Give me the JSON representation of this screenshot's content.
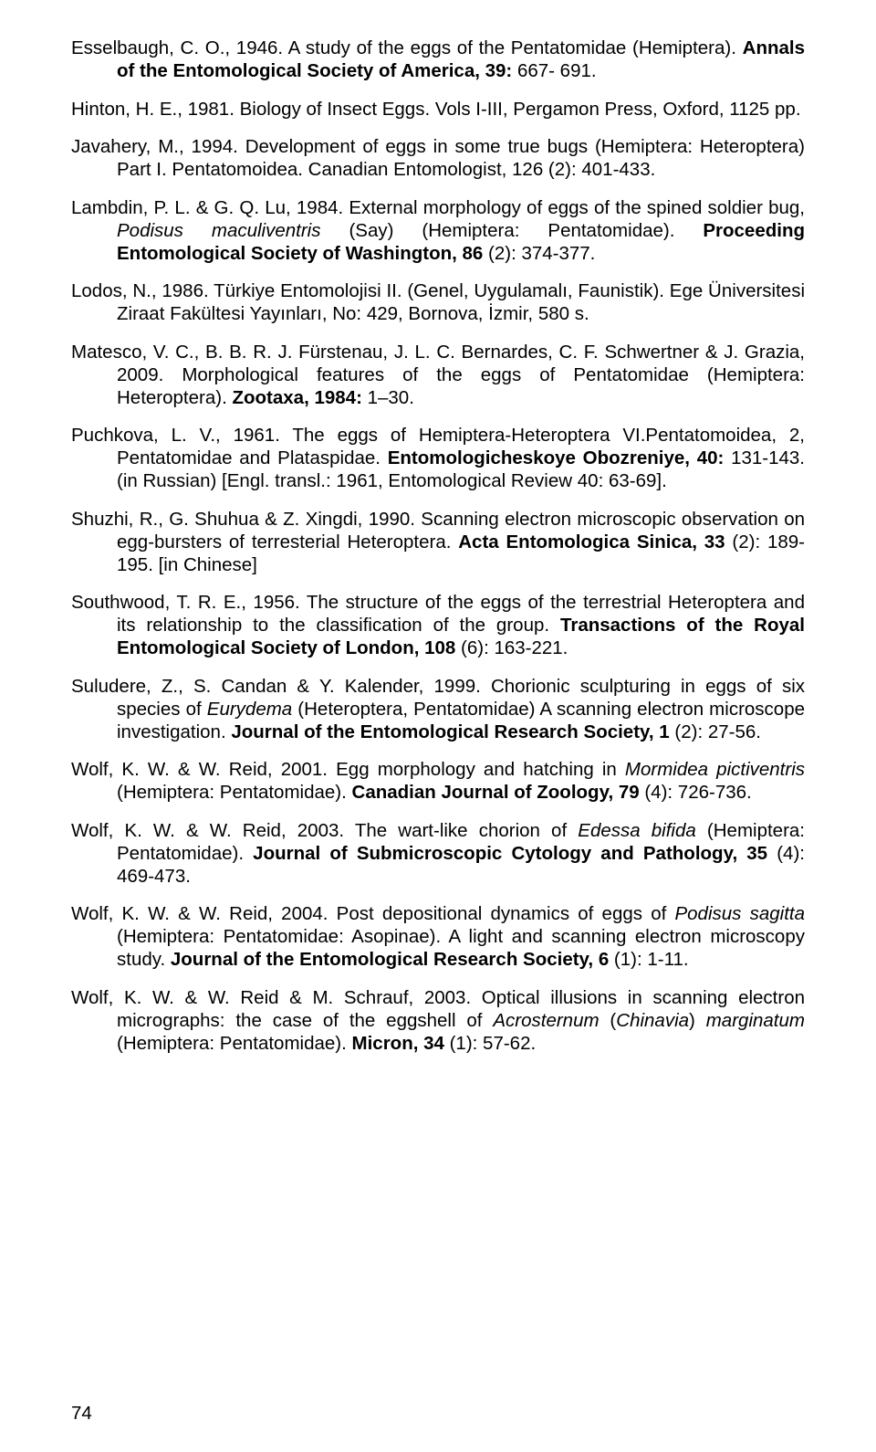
{
  "page_number": "74",
  "refs": [
    {
      "html": "Esselbaugh, C. O., 1946. A study of the eggs of the Pentatomidae (Hemiptera). <span class=\"bold\">Annals of the Entomological Society of America, 39:</span> 667- 691."
    },
    {
      "html": "Hinton, H. E., 1981. Biology of Insect Eggs. Vols I-III, Pergamon Press, Oxford, 1125 pp."
    },
    {
      "html": "Javahery, M., 1994. Development of eggs in some true bugs (Hemiptera: Heteroptera) Part I. Pentatomoidea. Canadian Entomologist, 126 (2): 401-433."
    },
    {
      "html": "Lambdin, P. L. & G. Q. Lu, 1984. External morphology of eggs of the spined soldier bug, <span class=\"italic\">Podisus maculiventris</span> (Say) (Hemiptera: Pentatomidae). <span class=\"bold\">Proceeding Entomological Society of Washington, 86</span> (2): 374-377."
    },
    {
      "html": "Lodos, N., 1986. Türkiye Entomolojisi II. (Genel, Uygulamalı, Faunistik). Ege Üniversitesi Ziraat Fakültesi Yayınları, No: 429, Bornova, İzmir, 580 s."
    },
    {
      "html": "Matesco, V. C., B. B. R. J. Fürstenau, J. L. C. Bernardes, C. F. Schwertner & J. Grazia, 2009. Morphological features of the eggs of Pentatomidae (Hemiptera: Heteroptera). <span class=\"bold\">Zootaxa, 1984:</span> 1–30."
    },
    {
      "html": "Puchkova, L. V., 1961. The eggs of Hemiptera-Heteroptera VI.Pentatomoidea, 2, Pentatomidae and Plataspidae. <span class=\"bold\">Entomologicheskoye Obozreniye, 40:</span> 131-143. (in Russian) [Engl. transl.: 1961, Entomological Review 40: 63-69]."
    },
    {
      "html": "Shuzhi, R., G. Shuhua & Z. Xingdi, 1990. Scanning electron microscopic observation on egg-bursters of terresterial Heteroptera. <span class=\"bold\">Acta Entomologica Sinica, 33</span> (2): 189-195. [in Chinese]"
    },
    {
      "html": "Southwood, T. R. E., 1956. The structure of the eggs of the terrestrial Heteroptera and its relationship to the classification of the group. <span class=\"bold\">Transactions of the Royal Entomological Society of London, 108</span> (6): 163-221."
    },
    {
      "html": "Suludere, Z., S. Candan & Y. Kalender, 1999. Chorionic sculpturing in eggs of six species of <span class=\"italic\">Eurydema</span> (Heteroptera, Pentatomidae) A scanning electron microscope investigation. <span class=\"bold\">Journal of the Entomological Research Society, 1</span> (2): 27-56."
    },
    {
      "html": "Wolf, K. W. & W. Reid, 2001. Egg morphology and hatching in <span class=\"italic\">Mormidea pictiventris</span> (Hemiptera: Pentatomidae). <span class=\"bold\">Canadian Journal of Zoology, 79</span> (4): 726-736."
    },
    {
      "html": "Wolf, K. W. & W. Reid, 2003. The wart-like chorion of <span class=\"italic\">Edessa bifida</span> (Hemiptera: Pentatomidae). <span class=\"bold\">Journal of Submicroscopic Cytology and Pathology, 35</span> (4): 469-473."
    },
    {
      "html": "Wolf, K. W. & W. Reid, 2004. Post depositional dynamics of eggs of <span class=\"italic\">Podisus sagitta</span> (Hemiptera: Pentatomidae: Asopinae). A light and scanning electron microscopy study. <span class=\"bold\">Journal of the Entomological Research Society, 6</span> (1): 1-11."
    },
    {
      "html": "Wolf, K. W. & W. Reid & M. Schrauf, 2003. Optical illusions in scanning electron micrographs: the case of the eggshell of <span class=\"italic\">Acrosternum</span> (<span class=\"italic\">Chinavia</span>) <span class=\"italic\">marginatum</span> (Hemiptera: Pentatomidae). <span class=\"bold\">Micron, 34</span> (1): 57-62."
    }
  ]
}
